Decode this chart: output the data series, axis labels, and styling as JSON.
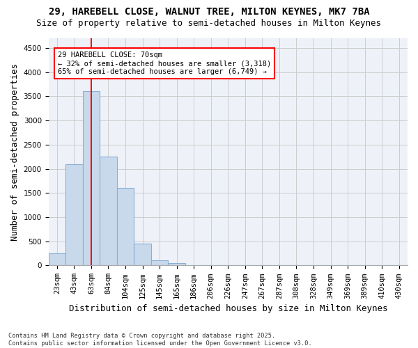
{
  "title_line1": "29, HAREBELL CLOSE, WALNUT TREE, MILTON KEYNES, MK7 7BA",
  "title_line2": "Size of property relative to semi-detached houses in Milton Keynes",
  "xlabel": "Distribution of semi-detached houses by size in Milton Keynes",
  "ylabel": "Number of semi-detached properties",
  "footer": "Contains HM Land Registry data © Crown copyright and database right 2025.\nContains public sector information licensed under the Open Government Licence v3.0.",
  "bins": [
    "23sqm",
    "43sqm",
    "63sqm",
    "84sqm",
    "104sqm",
    "125sqm",
    "145sqm",
    "165sqm",
    "186sqm",
    "206sqm",
    "226sqm",
    "247sqm",
    "267sqm",
    "287sqm",
    "308sqm",
    "328sqm",
    "349sqm",
    "369sqm",
    "389sqm",
    "410sqm",
    "430sqm"
  ],
  "values": [
    250,
    2100,
    3600,
    2250,
    1600,
    450,
    100,
    50,
    0,
    0,
    0,
    0,
    0,
    0,
    0,
    0,
    0,
    0,
    0,
    0,
    0
  ],
  "bar_color": "#c9d9ec",
  "bar_edge_color": "#8aafd4",
  "vline_x": 2.0,
  "annotation_text": "29 HAREBELL CLOSE: 70sqm\n← 32% of semi-detached houses are smaller (3,318)\n65% of semi-detached houses are larger (6,749) →",
  "annotation_box_color": "white",
  "annotation_box_edge_color": "red",
  "vline_color": "red",
  "ylim_max": 4700,
  "yticks": [
    0,
    500,
    1000,
    1500,
    2000,
    2500,
    3000,
    3500,
    4000,
    4500
  ],
  "grid_color": "#cccccc",
  "bg_color": "#eef2f8",
  "title_fontsize": 10,
  "subtitle_fontsize": 9,
  "tick_fontsize": 7.5,
  "label_fontsize": 9
}
